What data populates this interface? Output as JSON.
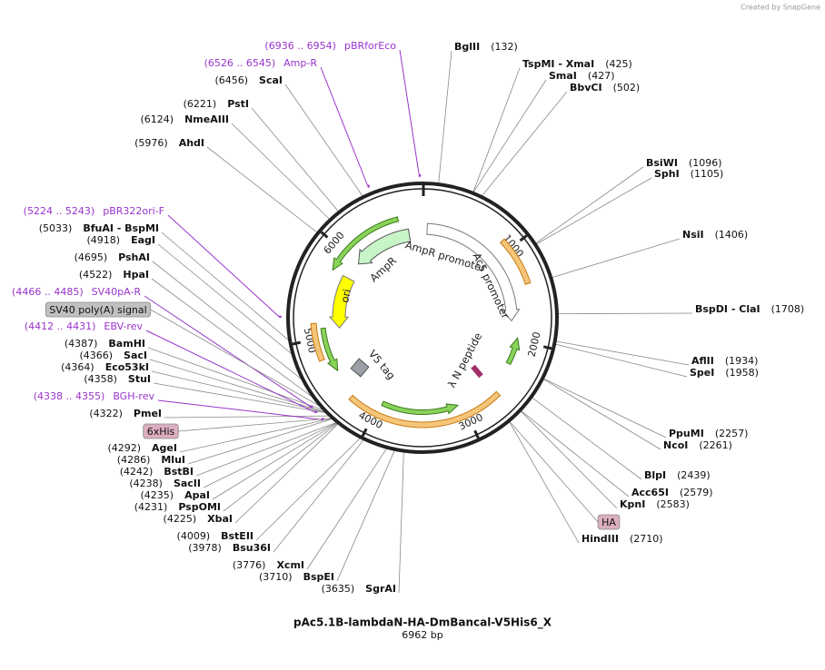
{
  "branding": "Created by SnapGene",
  "plasmid": {
    "name": "pAc5.1B-lambdaN-HA-DmBancal-V5His6_X",
    "size": "6962 bp"
  },
  "ruler": [
    1000,
    2000,
    3000,
    4000,
    5000,
    6000
  ],
  "sites": [
    {
      "name": "BglII",
      "location": "(132)"
    },
    {
      "name": "TspMI - XmaI",
      "location": "(425)"
    },
    {
      "name": "SmaI",
      "location": "(427)"
    },
    {
      "name": "BbvCI",
      "location": "(502)"
    },
    {
      "name": "BsiWI",
      "location": "(1096)"
    },
    {
      "name": "SphI",
      "location": "(1105)"
    },
    {
      "name": "NsiI",
      "location": "(1406)"
    },
    {
      "name": "BspDI - ClaI",
      "location": "(1708)"
    },
    {
      "name": "AflII",
      "location": "(1934)"
    },
    {
      "name": "SpeI",
      "location": "(1958)"
    },
    {
      "name": "PpuMI",
      "location": "(2257)"
    },
    {
      "name": "NcoI",
      "location": "(2261)"
    },
    {
      "name": "BlpI",
      "location": "(2439)"
    },
    {
      "name": "Acc65I",
      "location": "(2579)"
    },
    {
      "name": "KpnI",
      "location": "(2583)"
    },
    {
      "name": "HindIII",
      "location": "(2710)"
    },
    {
      "name": "SgrAI",
      "location": "(3635)"
    },
    {
      "name": "BspEI",
      "location": "(3710)"
    },
    {
      "name": "XcmI",
      "location": "(3776)"
    },
    {
      "name": "Bsu36I",
      "location": "(3978)"
    },
    {
      "name": "BstEII",
      "location": "(4009)"
    },
    {
      "name": "XbaI",
      "location": "(4225)"
    },
    {
      "name": "PspOMI",
      "location": "(4231)"
    },
    {
      "name": "ApaI",
      "location": "(4235)"
    },
    {
      "name": "SacII",
      "location": "(4238)"
    },
    {
      "name": "BstBI",
      "location": "(4242)"
    },
    {
      "name": "MluI",
      "location": "(4286)"
    },
    {
      "name": "AgeI",
      "location": "(4292)"
    },
    {
      "name": "PmeI",
      "location": "(4322)"
    },
    {
      "name": "StuI",
      "location": "(4358)"
    },
    {
      "name": "Eco53kI",
      "location": "(4364)"
    },
    {
      "name": "SacI",
      "location": "(4366)"
    },
    {
      "name": "BamHI",
      "location": "(4387)"
    },
    {
      "name": "HpaI",
      "location": "(4522)"
    },
    {
      "name": "PshAI",
      "location": "(4695)"
    },
    {
      "name": "EagI",
      "location": "(4918)"
    },
    {
      "name": "BfuAI - BspMI",
      "location": "(5033)"
    },
    {
      "name": "AhdI",
      "location": "(5976)"
    },
    {
      "name": "NmeAIII",
      "location": "(6124)"
    },
    {
      "name": "PstI",
      "location": "(6221)"
    },
    {
      "name": "ScaI",
      "location": "(6456)"
    }
  ],
  "primers": [
    {
      "range": "(6936 .. 6954)",
      "name": "pBRforEco"
    },
    {
      "range": "(6526 .. 6545)",
      "name": "Amp-R"
    },
    {
      "range": "(5224 .. 5243)",
      "name": "pBR322ori-F"
    },
    {
      "range": "(4466 .. 4485)",
      "name": "SV40pA-R"
    },
    {
      "range": "(4412 .. 4431)",
      "name": "EBV-rev"
    },
    {
      "range": "(4338 .. 4355)",
      "name": "BGH-rev"
    }
  ],
  "feature_boxes": [
    "SV40 poly(A) signal",
    "6xHis",
    "HA"
  ],
  "features": [
    "AmpR promoter",
    "Ac5 promoter",
    "AmpR",
    "ori",
    "V5 tag",
    "λ N peptide"
  ]
}
